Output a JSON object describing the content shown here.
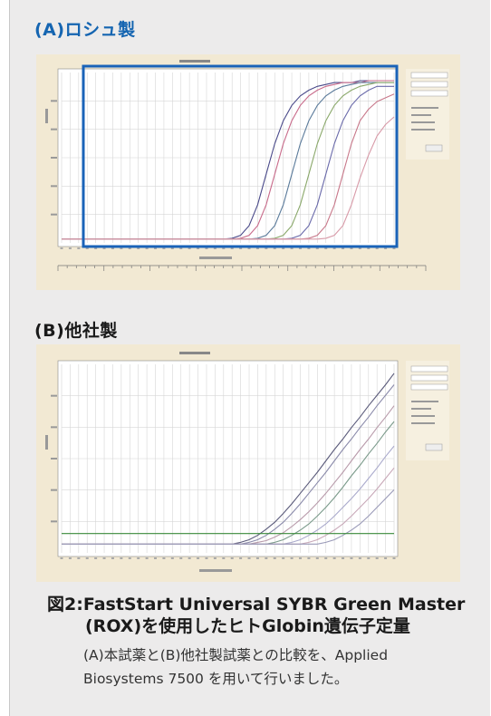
{
  "section_a": {
    "label": "(A)ロシュ製"
  },
  "section_b": {
    "label": "(B)他社製"
  },
  "figure": {
    "number": "図2:",
    "title_line1": "FastStart Universal SYBR Green Master",
    "title_line2": "(ROX)を使用したヒトGlobin遺伝子定量",
    "description_line1": "(A)本試薬と(B)他社製試薬との比較を、Applied",
    "description_line2": "Biosystems 7500 を用いて行いました。"
  },
  "colors": {
    "panel": "#ecebeb",
    "label_a": "#1565b1",
    "highlight_box": "#1a63b8",
    "screenshot_bg": "#f2e9d3"
  },
  "chart_data": [
    {
      "type": "line",
      "series": [
        {
          "values": [
            0.1,
            0.1,
            0.1,
            0.1,
            0.1,
            0.1,
            0.1,
            0.1,
            0.1,
            0.1,
            0.1,
            0.1,
            0.1,
            0.1,
            0.1,
            0.1,
            0.1,
            0.1,
            0.1,
            0.1,
            0.12,
            0.2,
            0.45,
            1.0,
            1.8,
            2.6,
            3.2,
            3.6,
            3.85,
            4.0,
            4.1,
            4.15,
            4.2,
            4.2,
            4.2,
            4.25,
            4.25,
            4.25,
            4.25,
            4.25
          ],
          "color": "#4a4a8a"
        },
        {
          "values": [
            0.1,
            0.1,
            0.1,
            0.1,
            0.1,
            0.1,
            0.1,
            0.1,
            0.1,
            0.1,
            0.1,
            0.1,
            0.1,
            0.1,
            0.1,
            0.1,
            0.1,
            0.1,
            0.1,
            0.1,
            0.1,
            0.12,
            0.2,
            0.45,
            1.0,
            1.8,
            2.6,
            3.2,
            3.6,
            3.85,
            4.0,
            4.1,
            4.15,
            4.2,
            4.2,
            4.2,
            4.25,
            4.25,
            4.25,
            4.25
          ],
          "color": "#c86a8a"
        },
        {
          "values": [
            0.1,
            0.1,
            0.1,
            0.1,
            0.1,
            0.1,
            0.1,
            0.1,
            0.1,
            0.1,
            0.1,
            0.1,
            0.1,
            0.1,
            0.1,
            0.1,
            0.1,
            0.1,
            0.1,
            0.1,
            0.1,
            0.1,
            0.1,
            0.12,
            0.2,
            0.45,
            1.0,
            1.8,
            2.6,
            3.2,
            3.6,
            3.85,
            4.0,
            4.1,
            4.15,
            4.2,
            4.2,
            4.2,
            4.2,
            4.2
          ],
          "color": "#5a7a9a"
        },
        {
          "values": [
            0.1,
            0.1,
            0.1,
            0.1,
            0.1,
            0.1,
            0.1,
            0.1,
            0.1,
            0.1,
            0.1,
            0.1,
            0.1,
            0.1,
            0.1,
            0.1,
            0.1,
            0.1,
            0.1,
            0.1,
            0.1,
            0.1,
            0.1,
            0.1,
            0.1,
            0.12,
            0.2,
            0.45,
            1.0,
            1.8,
            2.6,
            3.2,
            3.6,
            3.85,
            4.0,
            4.1,
            4.15,
            4.2,
            4.2,
            4.2
          ],
          "color": "#8aa86a"
        },
        {
          "values": [
            0.1,
            0.1,
            0.1,
            0.1,
            0.1,
            0.1,
            0.1,
            0.1,
            0.1,
            0.1,
            0.1,
            0.1,
            0.1,
            0.1,
            0.1,
            0.1,
            0.1,
            0.1,
            0.1,
            0.1,
            0.1,
            0.1,
            0.1,
            0.1,
            0.1,
            0.1,
            0.1,
            0.12,
            0.2,
            0.45,
            1.0,
            1.8,
            2.6,
            3.2,
            3.6,
            3.85,
            4.0,
            4.1,
            4.1,
            4.1
          ],
          "color": "#6a6aaa"
        },
        {
          "values": [
            0.1,
            0.1,
            0.1,
            0.1,
            0.1,
            0.1,
            0.1,
            0.1,
            0.1,
            0.1,
            0.1,
            0.1,
            0.1,
            0.1,
            0.1,
            0.1,
            0.1,
            0.1,
            0.1,
            0.1,
            0.1,
            0.1,
            0.1,
            0.1,
            0.1,
            0.1,
            0.1,
            0.1,
            0.1,
            0.12,
            0.2,
            0.45,
            1.0,
            1.8,
            2.6,
            3.2,
            3.5,
            3.7,
            3.8,
            3.9
          ],
          "color": "#c8788a"
        },
        {
          "values": [
            0.1,
            0.1,
            0.1,
            0.1,
            0.1,
            0.1,
            0.1,
            0.1,
            0.1,
            0.1,
            0.1,
            0.1,
            0.1,
            0.1,
            0.1,
            0.1,
            0.1,
            0.1,
            0.1,
            0.1,
            0.1,
            0.1,
            0.1,
            0.1,
            0.1,
            0.1,
            0.1,
            0.1,
            0.1,
            0.1,
            0.1,
            0.12,
            0.2,
            0.45,
            1.0,
            1.7,
            2.3,
            2.8,
            3.1,
            3.3
          ],
          "color": "#d89aa8"
        }
      ]
    },
    {
      "type": "line",
      "series": [
        {
          "values": [
            0.1,
            0.1,
            0.1,
            0.1,
            0.1,
            0.1,
            0.1,
            0.1,
            0.1,
            0.1,
            0.1,
            0.1,
            0.1,
            0.1,
            0.1,
            0.1,
            0.1,
            0.1,
            0.1,
            0.1,
            0.1,
            0.12,
            0.15,
            0.2,
            0.27,
            0.35,
            0.45,
            0.56,
            0.68,
            0.8,
            0.92,
            1.05,
            1.18,
            1.3,
            1.43,
            1.55,
            1.68,
            1.8,
            1.92,
            2.05
          ],
          "color": "#5a5a7a"
        },
        {
          "values": [
            0.1,
            0.1,
            0.1,
            0.1,
            0.1,
            0.1,
            0.1,
            0.1,
            0.1,
            0.1,
            0.1,
            0.1,
            0.1,
            0.1,
            0.1,
            0.1,
            0.1,
            0.1,
            0.1,
            0.1,
            0.1,
            0.1,
            0.12,
            0.15,
            0.2,
            0.27,
            0.35,
            0.45,
            0.56,
            0.68,
            0.8,
            0.92,
            1.05,
            1.18,
            1.3,
            1.43,
            1.55,
            1.68,
            1.8,
            1.92
          ],
          "color": "#8a8aaa"
        },
        {
          "values": [
            0.1,
            0.1,
            0.1,
            0.1,
            0.1,
            0.1,
            0.1,
            0.1,
            0.1,
            0.1,
            0.1,
            0.1,
            0.1,
            0.1,
            0.1,
            0.1,
            0.1,
            0.1,
            0.1,
            0.1,
            0.1,
            0.1,
            0.1,
            0.12,
            0.14,
            0.18,
            0.23,
            0.3,
            0.38,
            0.47,
            0.57,
            0.68,
            0.8,
            0.92,
            1.05,
            1.18,
            1.3,
            1.43,
            1.55,
            1.68
          ],
          "color": "#b89aaa"
        },
        {
          "values": [
            0.1,
            0.1,
            0.1,
            0.1,
            0.1,
            0.1,
            0.1,
            0.1,
            0.1,
            0.1,
            0.1,
            0.1,
            0.1,
            0.1,
            0.1,
            0.1,
            0.1,
            0.1,
            0.1,
            0.1,
            0.1,
            0.1,
            0.1,
            0.1,
            0.1,
            0.12,
            0.15,
            0.2,
            0.26,
            0.33,
            0.42,
            0.52,
            0.63,
            0.75,
            0.88,
            1.0,
            1.13,
            1.25,
            1.38,
            1.5
          ],
          "color": "#7a9a8a"
        },
        {
          "values": [
            0.1,
            0.1,
            0.1,
            0.1,
            0.1,
            0.1,
            0.1,
            0.1,
            0.1,
            0.1,
            0.1,
            0.1,
            0.1,
            0.1,
            0.1,
            0.1,
            0.1,
            0.1,
            0.1,
            0.1,
            0.1,
            0.1,
            0.1,
            0.1,
            0.1,
            0.1,
            0.1,
            0.12,
            0.15,
            0.2,
            0.26,
            0.33,
            0.42,
            0.52,
            0.62,
            0.73,
            0.85,
            0.97,
            1.1,
            1.22
          ],
          "color": "#aaaacc"
        },
        {
          "values": [
            0.1,
            0.1,
            0.1,
            0.1,
            0.1,
            0.1,
            0.1,
            0.1,
            0.1,
            0.1,
            0.1,
            0.1,
            0.1,
            0.1,
            0.1,
            0.1,
            0.1,
            0.1,
            0.1,
            0.1,
            0.1,
            0.1,
            0.1,
            0.1,
            0.1,
            0.1,
            0.1,
            0.1,
            0.1,
            0.12,
            0.15,
            0.2,
            0.26,
            0.33,
            0.42,
            0.52,
            0.62,
            0.73,
            0.85,
            0.97
          ],
          "color": "#c8a8b8"
        },
        {
          "values": [
            0.1,
            0.1,
            0.1,
            0.1,
            0.1,
            0.1,
            0.1,
            0.1,
            0.1,
            0.1,
            0.1,
            0.1,
            0.1,
            0.1,
            0.1,
            0.1,
            0.1,
            0.1,
            0.1,
            0.1,
            0.1,
            0.1,
            0.1,
            0.1,
            0.1,
            0.1,
            0.1,
            0.1,
            0.1,
            0.1,
            0.1,
            0.12,
            0.15,
            0.2,
            0.26,
            0.33,
            0.42,
            0.52,
            0.62,
            0.72
          ],
          "color": "#9a9ab8"
        },
        {
          "values": [
            0.22,
            0.22,
            0.22,
            0.22,
            0.22,
            0.22,
            0.22,
            0.22,
            0.22,
            0.22,
            0.22,
            0.22,
            0.22,
            0.22,
            0.22,
            0.22,
            0.22,
            0.22,
            0.22,
            0.22,
            0.22,
            0.22,
            0.22,
            0.22,
            0.22,
            0.22,
            0.22,
            0.22,
            0.22,
            0.22,
            0.22,
            0.22,
            0.22,
            0.22,
            0.22,
            0.22,
            0.22,
            0.22,
            0.22,
            0.22
          ],
          "color": "#3a8a3a"
        }
      ]
    }
  ]
}
